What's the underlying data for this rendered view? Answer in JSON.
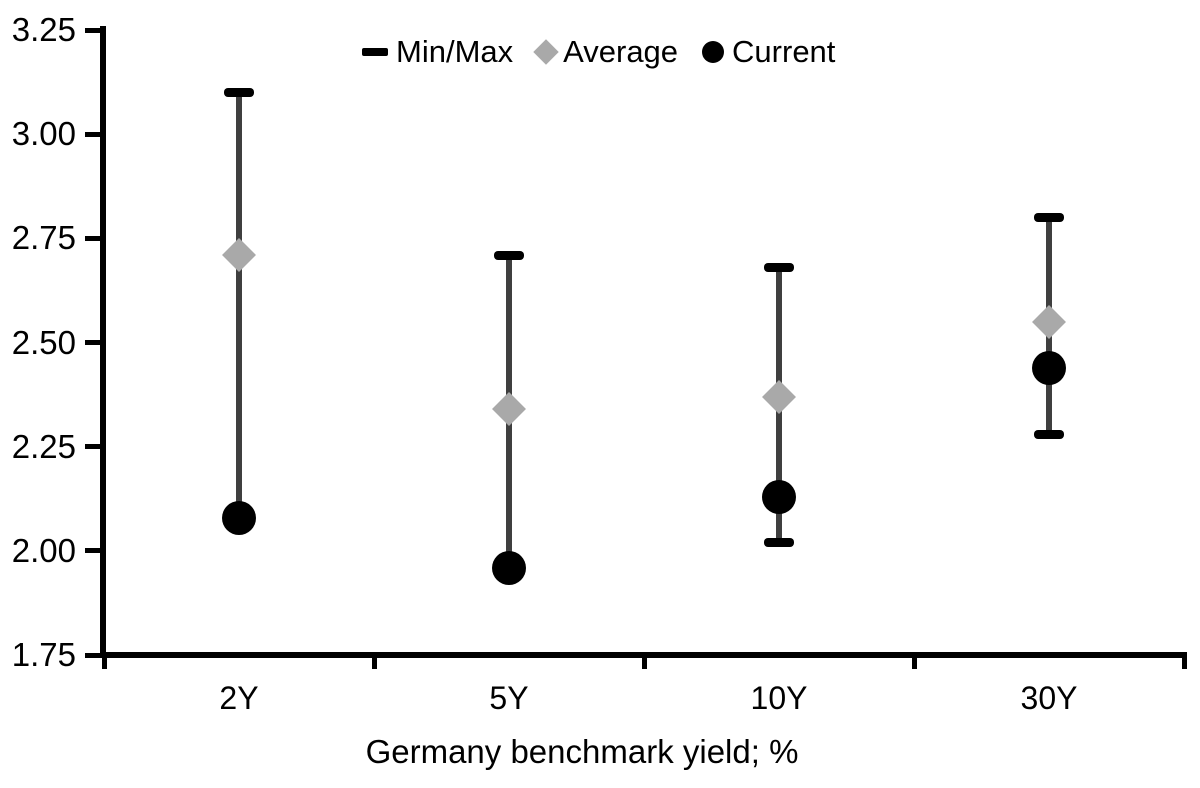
{
  "chart_data": {
    "type": "range_dot",
    "title": "",
    "xlabel": "Germany benchmark yield; %",
    "ylabel": "",
    "categories": [
      "2Y",
      "5Y",
      "10Y",
      "30Y"
    ],
    "series": [
      {
        "name": "Min/Max",
        "marker": "dash",
        "min": [
          2.08,
          1.96,
          2.02,
          2.28
        ],
        "max": [
          3.1,
          2.71,
          2.68,
          2.8
        ]
      },
      {
        "name": "Average",
        "marker": "diamond",
        "values": [
          2.71,
          2.34,
          2.37,
          2.55
        ]
      },
      {
        "name": "Current",
        "marker": "circle",
        "values": [
          2.08,
          1.96,
          2.13,
          2.44
        ]
      }
    ],
    "ylim": [
      1.75,
      3.25
    ],
    "yticks": [
      "3.25",
      "3.00",
      "2.75",
      "2.50",
      "2.25",
      "2.00",
      "1.75"
    ],
    "grid": false,
    "legend_position": "top-center",
    "colors": {
      "minmax_cap": "#000000",
      "range_line": "#3f3f3f",
      "average": "#a9a9a9",
      "current": "#000000",
      "axis": "#000000",
      "text": "#000000",
      "background": "#ffffff"
    }
  }
}
